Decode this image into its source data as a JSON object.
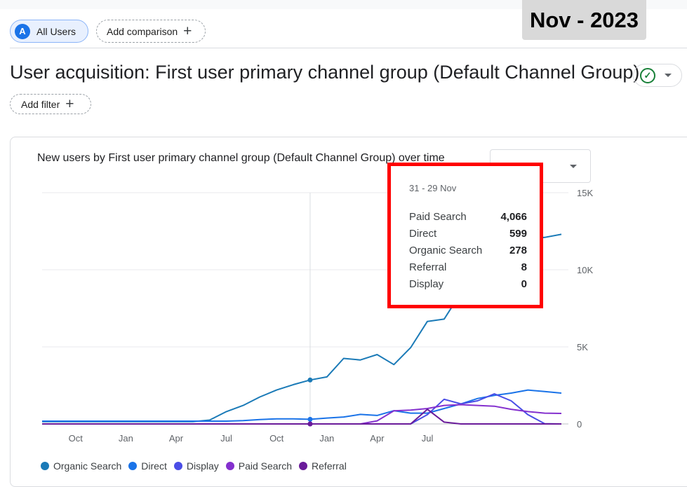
{
  "segment": {
    "avatar": "A",
    "label": "All Users"
  },
  "add_comparison": {
    "label": "Add comparison",
    "icon": "plus-icon"
  },
  "date_badge": "Nov - 2023",
  "page_title": "User acquisition: First user primary channel group (Default Channel Group)",
  "add_filter": {
    "label": "Add filter",
    "icon": "plus-icon"
  },
  "status": {
    "icon": "check-circle-icon",
    "color": "#188038"
  },
  "chart_title": "New users by First user primary channel group (Default Channel Group) over time",
  "tooltip": {
    "date": "31 - 29 Nov",
    "rows": [
      {
        "name": "Paid Search",
        "value": "4,066"
      },
      {
        "name": "Direct",
        "value": "599"
      },
      {
        "name": "Organic Search",
        "value": "278"
      },
      {
        "name": "Referral",
        "value": "8"
      },
      {
        "name": "Display",
        "value": "0"
      }
    ]
  },
  "chart_data": {
    "type": "line",
    "title": "New users by First user primary channel group (Default Channel Group) over time",
    "xlabel": "",
    "ylabel": "",
    "y_ticks": [
      0,
      5000,
      10000,
      15000
    ],
    "y_tick_labels": [
      "0",
      "5K",
      "10K",
      "15K"
    ],
    "ylim": [
      0,
      15000
    ],
    "x_tick_labels": [
      "Oct",
      "Jan",
      "Apr",
      "Jul",
      "Oct",
      "Jan",
      "Apr",
      "Jul"
    ],
    "grid": true,
    "legend_position": "bottom",
    "x": [
      0,
      1,
      2,
      3,
      4,
      5,
      6,
      7,
      8,
      9,
      10,
      11,
      12,
      13,
      14,
      15,
      16,
      17,
      18,
      19,
      20,
      21,
      22,
      23,
      24,
      25,
      26,
      27,
      28,
      29,
      30,
      31
    ],
    "series": [
      {
        "name": "Organic Search",
        "color": "#1a7ab7",
        "values": [
          150,
          150,
          150,
          150,
          150,
          150,
          150,
          150,
          150,
          150,
          250,
          800,
          1200,
          1750,
          2200,
          2550,
          2850,
          3050,
          4250,
          4150,
          4500,
          3850,
          4950,
          6650,
          6800,
          8500,
          10000,
          11000,
          11500,
          12000,
          12100,
          12300
        ]
      },
      {
        "name": "Direct",
        "color": "#1a73e8",
        "values": [
          180,
          180,
          180,
          180,
          180,
          180,
          180,
          180,
          180,
          180,
          180,
          180,
          220,
          280,
          330,
          330,
          300,
          380,
          450,
          620,
          550,
          860,
          700,
          700,
          1000,
          1300,
          1650,
          1850,
          2000,
          2200,
          2100,
          2000
        ]
      },
      {
        "name": "Display",
        "color": "#4a4de6",
        "values": [
          0,
          0,
          0,
          0,
          0,
          0,
          0,
          0,
          0,
          0,
          0,
          0,
          0,
          0,
          0,
          0,
          0,
          0,
          0,
          0,
          0,
          0,
          0,
          600,
          1600,
          1300,
          1500,
          1950,
          1500,
          600,
          20,
          0
        ]
      },
      {
        "name": "Paid Search",
        "color": "#8430ce",
        "values": [
          0,
          0,
          0,
          0,
          0,
          0,
          0,
          0,
          0,
          0,
          0,
          0,
          0,
          0,
          0,
          0,
          0,
          0,
          0,
          0,
          200,
          850,
          900,
          1000,
          1200,
          1250,
          1200,
          1150,
          950,
          800,
          700,
          680
        ]
      },
      {
        "name": "Referral",
        "color": "#6a1b9a",
        "values": [
          0,
          0,
          0,
          0,
          0,
          0,
          0,
          0,
          0,
          0,
          0,
          0,
          0,
          0,
          0,
          0,
          0,
          0,
          0,
          0,
          0,
          0,
          0,
          950,
          120,
          0,
          0,
          0,
          0,
          0,
          0,
          0
        ]
      }
    ]
  }
}
